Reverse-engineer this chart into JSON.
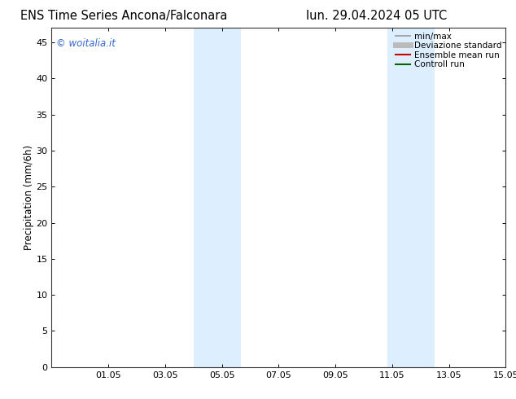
{
  "title_left": "ENS Time Series Ancona/Falconara",
  "title_right": "lun. 29.04.2024 05 UTC",
  "ylabel": "Precipitation (mm/6h)",
  "watermark": "© woitalia.it",
  "watermark_color": "#3366cc",
  "background_color": "#ffffff",
  "plot_bg_color": "#ffffff",
  "xmin": 29.0,
  "xmax": 45.0,
  "ymin": 0,
  "ymax": 47,
  "yticks": [
    0,
    5,
    10,
    15,
    20,
    25,
    30,
    35,
    40,
    45
  ],
  "xtick_labels": [
    "01.05",
    "03.05",
    "05.05",
    "07.05",
    "09.05",
    "11.05",
    "13.05",
    "15.05"
  ],
  "xtick_positions": [
    31,
    33,
    35,
    37,
    39,
    41,
    43,
    45
  ],
  "shaded_bands": [
    {
      "xmin": 34.0,
      "xmax": 34.83,
      "color": "#ddeeff"
    },
    {
      "xmin": 34.83,
      "xmax": 35.67,
      "color": "#ddeeff"
    },
    {
      "xmin": 40.83,
      "xmax": 41.67,
      "color": "#ddeeff"
    },
    {
      "xmin": 41.67,
      "xmax": 42.5,
      "color": "#ddeeff"
    }
  ],
  "legend_entries": [
    {
      "label": "min/max",
      "color": "#999999",
      "lw": 1.2,
      "style": "solid"
    },
    {
      "label": "Deviazione standard",
      "color": "#bbbbbb",
      "lw": 5,
      "style": "solid"
    },
    {
      "label": "Ensemble mean run",
      "color": "#cc0000",
      "lw": 1.5,
      "style": "solid"
    },
    {
      "label": "Controll run",
      "color": "#006600",
      "lw": 1.5,
      "style": "solid"
    }
  ],
  "title_fontsize": 10.5,
  "tick_fontsize": 8,
  "legend_fontsize": 7.5,
  "ylabel_fontsize": 8.5
}
